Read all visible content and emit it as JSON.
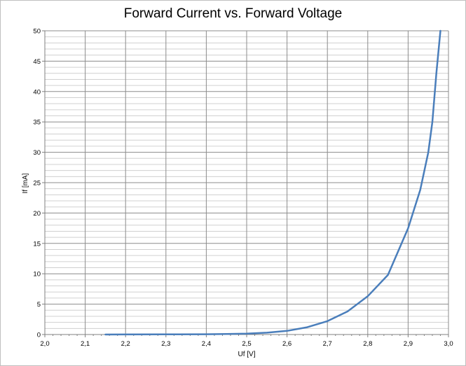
{
  "chart_data": {
    "type": "line",
    "title": "Forward Current vs. Forward Voltage",
    "xlabel": "Uf [V]",
    "ylabel": "If [mA]",
    "xlim": [
      2.0,
      3.0
    ],
    "ylim": [
      0,
      50
    ],
    "xticks": [
      "2,0",
      "2,1",
      "2,2",
      "2,3",
      "2,4",
      "2,5",
      "2,6",
      "2,7",
      "2,8",
      "2,9",
      "3,0"
    ],
    "yticks": [
      "0",
      "5",
      "10",
      "15",
      "20",
      "25",
      "30",
      "35",
      "40",
      "45",
      "50"
    ],
    "grid": true,
    "legend": "none",
    "colors": {
      "series": "#4a7ebb",
      "major_grid": "#8c8c8c",
      "minor_grid": "#d0d0d0",
      "axis": "#808080"
    },
    "series": [
      {
        "x": [
          2.15,
          2.2,
          2.3,
          2.4,
          2.45,
          2.5,
          2.55,
          2.6,
          2.65,
          2.7,
          2.75,
          2.8,
          2.85,
          2.9,
          2.93,
          2.95,
          2.96,
          2.97,
          2.98
        ],
        "y": [
          0.0,
          0.01,
          0.02,
          0.05,
          0.08,
          0.15,
          0.3,
          0.6,
          1.2,
          2.2,
          3.8,
          6.3,
          9.8,
          17.5,
          23.8,
          30.0,
          35.0,
          43.0,
          50.0
        ]
      }
    ]
  }
}
